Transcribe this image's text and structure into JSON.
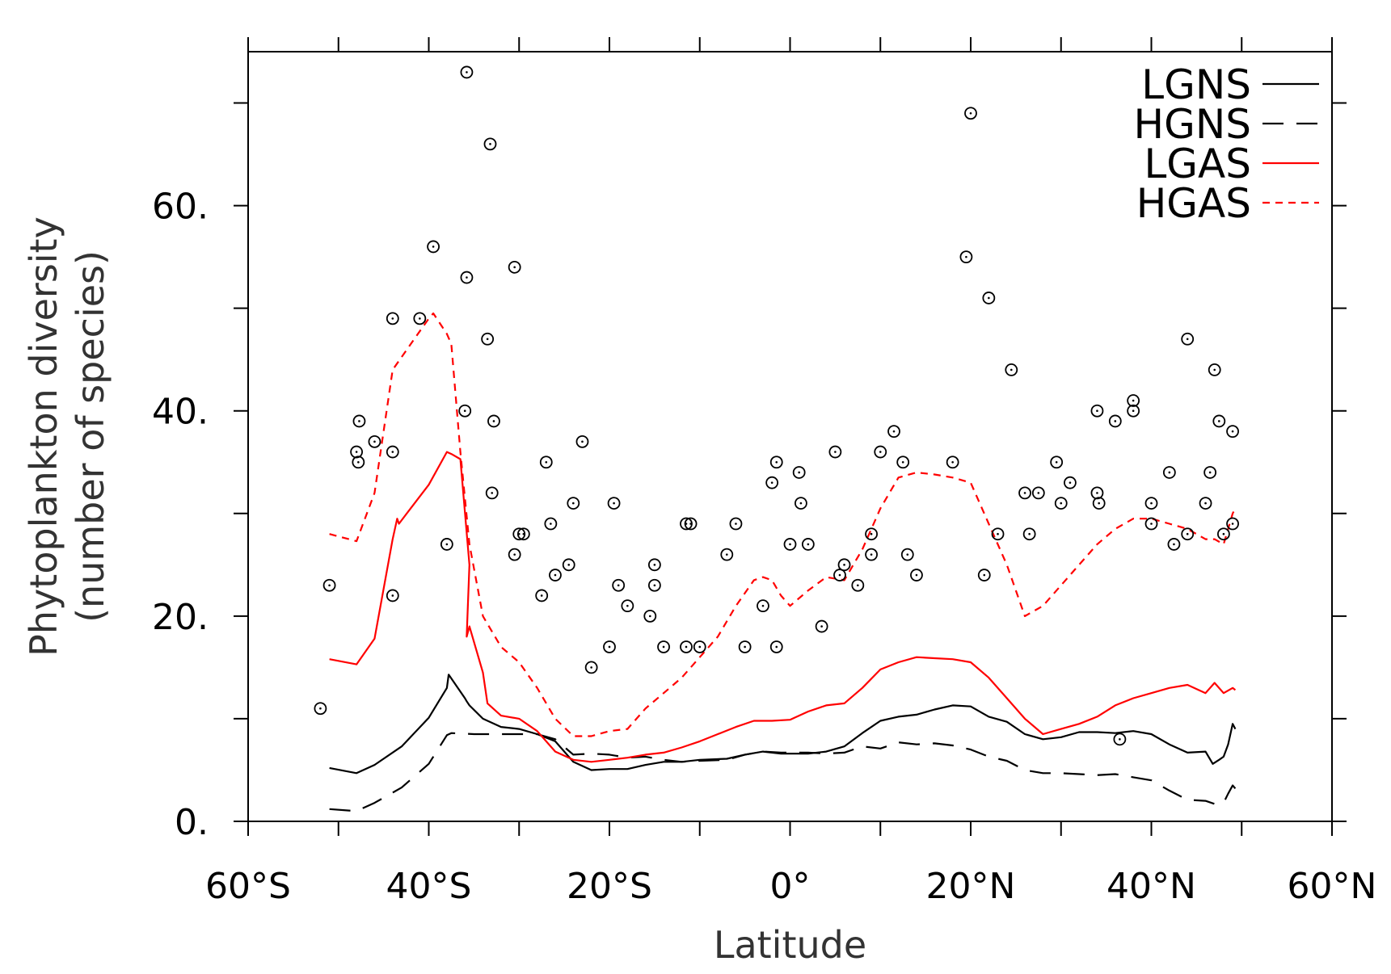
{
  "chart_data": {
    "type": "line",
    "xlabel": "Latitude",
    "ylabel_line1": "Phytoplankton diversity",
    "ylabel_line2": "(number of species)",
    "xlim": [
      -60,
      60
    ],
    "ylim": [
      0,
      75
    ],
    "x_ticks": [
      -60,
      -40,
      -20,
      0,
      20,
      40,
      60
    ],
    "x_tick_labels": [
      "60°S",
      "40°S",
      "20°S",
      "0°",
      "20°N",
      "40°N",
      "60°N"
    ],
    "x_minor_ticks": [
      -50,
      -30,
      -10,
      10,
      30,
      50
    ],
    "y_ticks": [
      0,
      20,
      40,
      60
    ],
    "y_tick_labels": [
      "0.",
      "20.",
      "40.",
      "60."
    ],
    "y_minor_ticks": [
      10,
      30,
      50,
      70
    ],
    "legend_position": "top-right",
    "colors": {
      "black": "#000000",
      "red": "#ff0000"
    },
    "series": [
      {
        "name": "LGNS",
        "color": "#000000",
        "dash": "solid",
        "points": [
          [
            -51,
            5.2
          ],
          [
            -48,
            4.7
          ],
          [
            -46,
            5.5
          ],
          [
            -43,
            7.3
          ],
          [
            -40,
            10.1
          ],
          [
            -38,
            13.0
          ],
          [
            -37.8,
            14.3
          ],
          [
            -36,
            12.0
          ],
          [
            -35.8,
            11.7
          ],
          [
            -35.5,
            11.3
          ],
          [
            -34,
            10.0
          ],
          [
            -32,
            9.2
          ],
          [
            -30,
            9.0
          ],
          [
            -28,
            8.5
          ],
          [
            -26,
            7.8
          ],
          [
            -24,
            5.8
          ],
          [
            -22,
            5.0
          ],
          [
            -20,
            5.1
          ],
          [
            -18,
            5.1
          ],
          [
            -16,
            5.5
          ],
          [
            -14,
            5.8
          ],
          [
            -12,
            5.8
          ],
          [
            -10,
            6.0
          ],
          [
            -7,
            6.1
          ],
          [
            -5,
            6.5
          ],
          [
            -3,
            6.8
          ],
          [
            -1,
            6.6
          ],
          [
            2,
            6.6
          ],
          [
            4,
            6.8
          ],
          [
            6,
            7.3
          ],
          [
            8,
            8.6
          ],
          [
            10,
            9.8
          ],
          [
            12,
            10.2
          ],
          [
            14,
            10.4
          ],
          [
            16,
            10.9
          ],
          [
            18,
            11.3
          ],
          [
            20,
            11.2
          ],
          [
            22,
            10.2
          ],
          [
            24,
            9.7
          ],
          [
            26,
            8.5
          ],
          [
            28,
            8.0
          ],
          [
            30,
            8.2
          ],
          [
            32,
            8.7
          ],
          [
            34,
            8.7
          ],
          [
            36,
            8.6
          ],
          [
            38,
            8.8
          ],
          [
            40,
            8.5
          ],
          [
            42,
            7.5
          ],
          [
            44,
            6.7
          ],
          [
            46,
            6.8
          ],
          [
            46.8,
            5.6
          ],
          [
            47.5,
            6.0
          ],
          [
            48,
            6.3
          ],
          [
            48.5,
            7.5
          ],
          [
            49,
            9.5
          ],
          [
            49.3,
            9.0
          ]
        ]
      },
      {
        "name": "HGNS",
        "color": "#000000",
        "dash": "long-dash",
        "points": [
          [
            -51,
            1.2
          ],
          [
            -48,
            1.0
          ],
          [
            -46,
            1.8
          ],
          [
            -43,
            3.3
          ],
          [
            -40,
            5.6
          ],
          [
            -38,
            8.4
          ],
          [
            -37.5,
            8.6
          ],
          [
            -35,
            8.5
          ],
          [
            -32,
            8.5
          ],
          [
            -28,
            8.5
          ],
          [
            -26,
            8.0
          ],
          [
            -24,
            6.5
          ],
          [
            -22,
            6.6
          ],
          [
            -20,
            6.5
          ],
          [
            -18,
            6.2
          ],
          [
            -16,
            6.3
          ],
          [
            -14,
            6.0
          ],
          [
            -12,
            5.8
          ],
          [
            -10,
            5.9
          ],
          [
            -7,
            6.0
          ],
          [
            -5,
            6.5
          ],
          [
            -3,
            6.8
          ],
          [
            -1,
            6.7
          ],
          [
            2,
            6.7
          ],
          [
            4,
            6.6
          ],
          [
            6,
            6.7
          ],
          [
            8,
            7.3
          ],
          [
            10,
            7.1
          ],
          [
            12,
            7.7
          ],
          [
            14,
            7.5
          ],
          [
            16,
            7.6
          ],
          [
            18,
            7.4
          ],
          [
            20,
            7.0
          ],
          [
            22,
            6.3
          ],
          [
            24,
            5.9
          ],
          [
            26,
            5.0
          ],
          [
            28,
            4.7
          ],
          [
            30,
            4.7
          ],
          [
            32,
            4.6
          ],
          [
            34,
            4.5
          ],
          [
            36,
            4.6
          ],
          [
            38,
            4.3
          ],
          [
            40,
            4.0
          ],
          [
            42,
            3.0
          ],
          [
            44,
            2.1
          ],
          [
            46,
            2.0
          ],
          [
            47,
            1.7
          ],
          [
            48,
            1.8
          ],
          [
            48.5,
            2.7
          ],
          [
            49,
            3.5
          ],
          [
            49.3,
            3.2
          ]
        ]
      },
      {
        "name": "LGAS",
        "color": "#ff0000",
        "dash": "solid",
        "points": [
          [
            -51,
            15.8
          ],
          [
            -48,
            15.3
          ],
          [
            -46,
            17.8
          ],
          [
            -44,
            27.5
          ],
          [
            -43.5,
            29.5
          ],
          [
            -43.3,
            29.0
          ],
          [
            -42,
            30.5
          ],
          [
            -40,
            32.8
          ],
          [
            -38,
            36.0
          ],
          [
            -37.5,
            35.8
          ],
          [
            -36.5,
            35.3
          ],
          [
            -35.5,
            25.0
          ],
          [
            -35.8,
            18.0
          ],
          [
            -35.5,
            19.0
          ],
          [
            -34,
            14.5
          ],
          [
            -33.5,
            11.5
          ],
          [
            -32,
            10.3
          ],
          [
            -30,
            10.0
          ],
          [
            -28,
            8.8
          ],
          [
            -26,
            6.8
          ],
          [
            -24,
            6.0
          ],
          [
            -22,
            5.8
          ],
          [
            -20,
            6.0
          ],
          [
            -18,
            6.2
          ],
          [
            -16,
            6.5
          ],
          [
            -14,
            6.7
          ],
          [
            -12,
            7.2
          ],
          [
            -10,
            7.8
          ],
          [
            -8,
            8.5
          ],
          [
            -6,
            9.2
          ],
          [
            -4,
            9.8
          ],
          [
            -2,
            9.8
          ],
          [
            0,
            9.9
          ],
          [
            2,
            10.7
          ],
          [
            4,
            11.3
          ],
          [
            6,
            11.5
          ],
          [
            8,
            13.0
          ],
          [
            10,
            14.8
          ],
          [
            12,
            15.5
          ],
          [
            14,
            16.0
          ],
          [
            16,
            15.9
          ],
          [
            18,
            15.8
          ],
          [
            20,
            15.5
          ],
          [
            22,
            14.0
          ],
          [
            24,
            12.0
          ],
          [
            26,
            10.0
          ],
          [
            28,
            8.5
          ],
          [
            30,
            9.0
          ],
          [
            32,
            9.5
          ],
          [
            34,
            10.2
          ],
          [
            36,
            11.3
          ],
          [
            38,
            12.0
          ],
          [
            40,
            12.5
          ],
          [
            42,
            13.0
          ],
          [
            44,
            13.3
          ],
          [
            46,
            12.5
          ],
          [
            47,
            13.5
          ],
          [
            48,
            12.5
          ],
          [
            49,
            13.0
          ],
          [
            49.3,
            12.8
          ]
        ]
      },
      {
        "name": "HGAS",
        "color": "#ff0000",
        "dash": "short-dash",
        "points": [
          [
            -51,
            28.0
          ],
          [
            -48,
            27.3
          ],
          [
            -46,
            32.0
          ],
          [
            -44,
            44.0
          ],
          [
            -42,
            46.5
          ],
          [
            -40,
            49.0
          ],
          [
            -39.5,
            49.5
          ],
          [
            -38,
            47.5
          ],
          [
            -37.5,
            46.5
          ],
          [
            -36.5,
            36.0
          ],
          [
            -35.5,
            27.0
          ],
          [
            -34,
            20.0
          ],
          [
            -32,
            17.0
          ],
          [
            -30,
            15.5
          ],
          [
            -28,
            13.0
          ],
          [
            -26,
            10.0
          ],
          [
            -24,
            8.3
          ],
          [
            -22,
            8.3
          ],
          [
            -20,
            8.8
          ],
          [
            -18,
            9.0
          ],
          [
            -16,
            11.0
          ],
          [
            -14,
            12.5
          ],
          [
            -12,
            14.0
          ],
          [
            -10,
            16.0
          ],
          [
            -8,
            18.0
          ],
          [
            -6,
            21.0
          ],
          [
            -4,
            23.5
          ],
          [
            -3,
            23.8
          ],
          [
            -2,
            23.5
          ],
          [
            -1,
            22.0
          ],
          [
            0,
            21.0
          ],
          [
            2,
            22.5
          ],
          [
            4,
            23.8
          ],
          [
            6,
            23.5
          ],
          [
            8,
            26.5
          ],
          [
            10,
            30.5
          ],
          [
            12,
            33.5
          ],
          [
            14,
            34.0
          ],
          [
            16,
            33.8
          ],
          [
            18,
            33.5
          ],
          [
            20,
            33.0
          ],
          [
            22,
            29.0
          ],
          [
            24,
            25.0
          ],
          [
            26,
            20.0
          ],
          [
            28,
            21.0
          ],
          [
            30,
            23.0
          ],
          [
            32,
            25.0
          ],
          [
            34,
            27.0
          ],
          [
            36,
            28.5
          ],
          [
            38,
            29.5
          ],
          [
            40,
            29.5
          ],
          [
            42,
            29.0
          ],
          [
            44,
            28.5
          ],
          [
            46,
            27.5
          ],
          [
            47,
            27.5
          ],
          [
            48,
            27.0
          ],
          [
            49,
            30.0
          ],
          [
            49.3,
            30.5
          ]
        ]
      }
    ],
    "observations": [
      [
        -52,
        11
      ],
      [
        -51,
        23
      ],
      [
        -48,
        36
      ],
      [
        -47.8,
        35
      ],
      [
        -47.7,
        39
      ],
      [
        -46,
        37
      ],
      [
        -44,
        36
      ],
      [
        -44,
        49
      ],
      [
        -44,
        22
      ],
      [
        -41,
        49
      ],
      [
        -39.5,
        56
      ],
      [
        -38,
        27
      ],
      [
        -36,
        40
      ],
      [
        -35.8,
        53
      ],
      [
        -35.8,
        73
      ],
      [
        -33.5,
        47
      ],
      [
        -33.2,
        66
      ],
      [
        -33,
        32
      ],
      [
        -32.8,
        39
      ],
      [
        -30.5,
        54
      ],
      [
        -30.5,
        26
      ],
      [
        -30,
        28
      ],
      [
        -29.5,
        28
      ],
      [
        -27.5,
        22
      ],
      [
        -27,
        35
      ],
      [
        -26.5,
        29
      ],
      [
        -26,
        24
      ],
      [
        -24.5,
        25
      ],
      [
        -24,
        31
      ],
      [
        -23,
        37
      ],
      [
        -22,
        15
      ],
      [
        -20,
        17
      ],
      [
        -19.5,
        31
      ],
      [
        -19,
        23
      ],
      [
        -18,
        21
      ],
      [
        -15.5,
        20
      ],
      [
        -15,
        23
      ],
      [
        -15,
        25
      ],
      [
        -14,
        17
      ],
      [
        -11.5,
        17
      ],
      [
        -11.5,
        29
      ],
      [
        -11,
        29
      ],
      [
        -10,
        17
      ],
      [
        -7,
        26
      ],
      [
        -6,
        29
      ],
      [
        -5,
        17
      ],
      [
        -3,
        21
      ],
      [
        -2,
        33
      ],
      [
        -1.5,
        35
      ],
      [
        -1.5,
        17
      ],
      [
        0,
        27
      ],
      [
        1,
        34
      ],
      [
        1.2,
        31
      ],
      [
        2,
        27
      ],
      [
        3.5,
        19
      ],
      [
        5,
        36
      ],
      [
        5.5,
        24
      ],
      [
        6,
        25
      ],
      [
        7.5,
        23
      ],
      [
        9,
        26
      ],
      [
        9,
        28
      ],
      [
        10,
        36
      ],
      [
        11.5,
        38
      ],
      [
        12.5,
        35
      ],
      [
        13,
        26
      ],
      [
        14,
        24
      ],
      [
        18,
        35
      ],
      [
        19.5,
        55
      ],
      [
        20,
        69
      ],
      [
        21.5,
        24
      ],
      [
        22,
        51
      ],
      [
        23,
        28
      ],
      [
        24.5,
        44
      ],
      [
        26,
        32
      ],
      [
        26.5,
        28
      ],
      [
        27.5,
        32
      ],
      [
        29.5,
        35
      ],
      [
        30,
        31
      ],
      [
        31,
        33
      ],
      [
        34,
        32
      ],
      [
        34,
        40
      ],
      [
        34.2,
        31
      ],
      [
        36,
        39
      ],
      [
        36.5,
        8
      ],
      [
        38,
        41
      ],
      [
        38,
        40
      ],
      [
        40,
        31
      ],
      [
        40,
        29
      ],
      [
        42,
        34
      ],
      [
        42.5,
        27
      ],
      [
        44,
        47
      ],
      [
        44,
        28
      ],
      [
        46,
        31
      ],
      [
        46.5,
        34
      ],
      [
        47,
        44
      ],
      [
        47.5,
        39
      ],
      [
        48,
        28
      ],
      [
        49,
        29
      ],
      [
        49,
        38
      ]
    ]
  }
}
